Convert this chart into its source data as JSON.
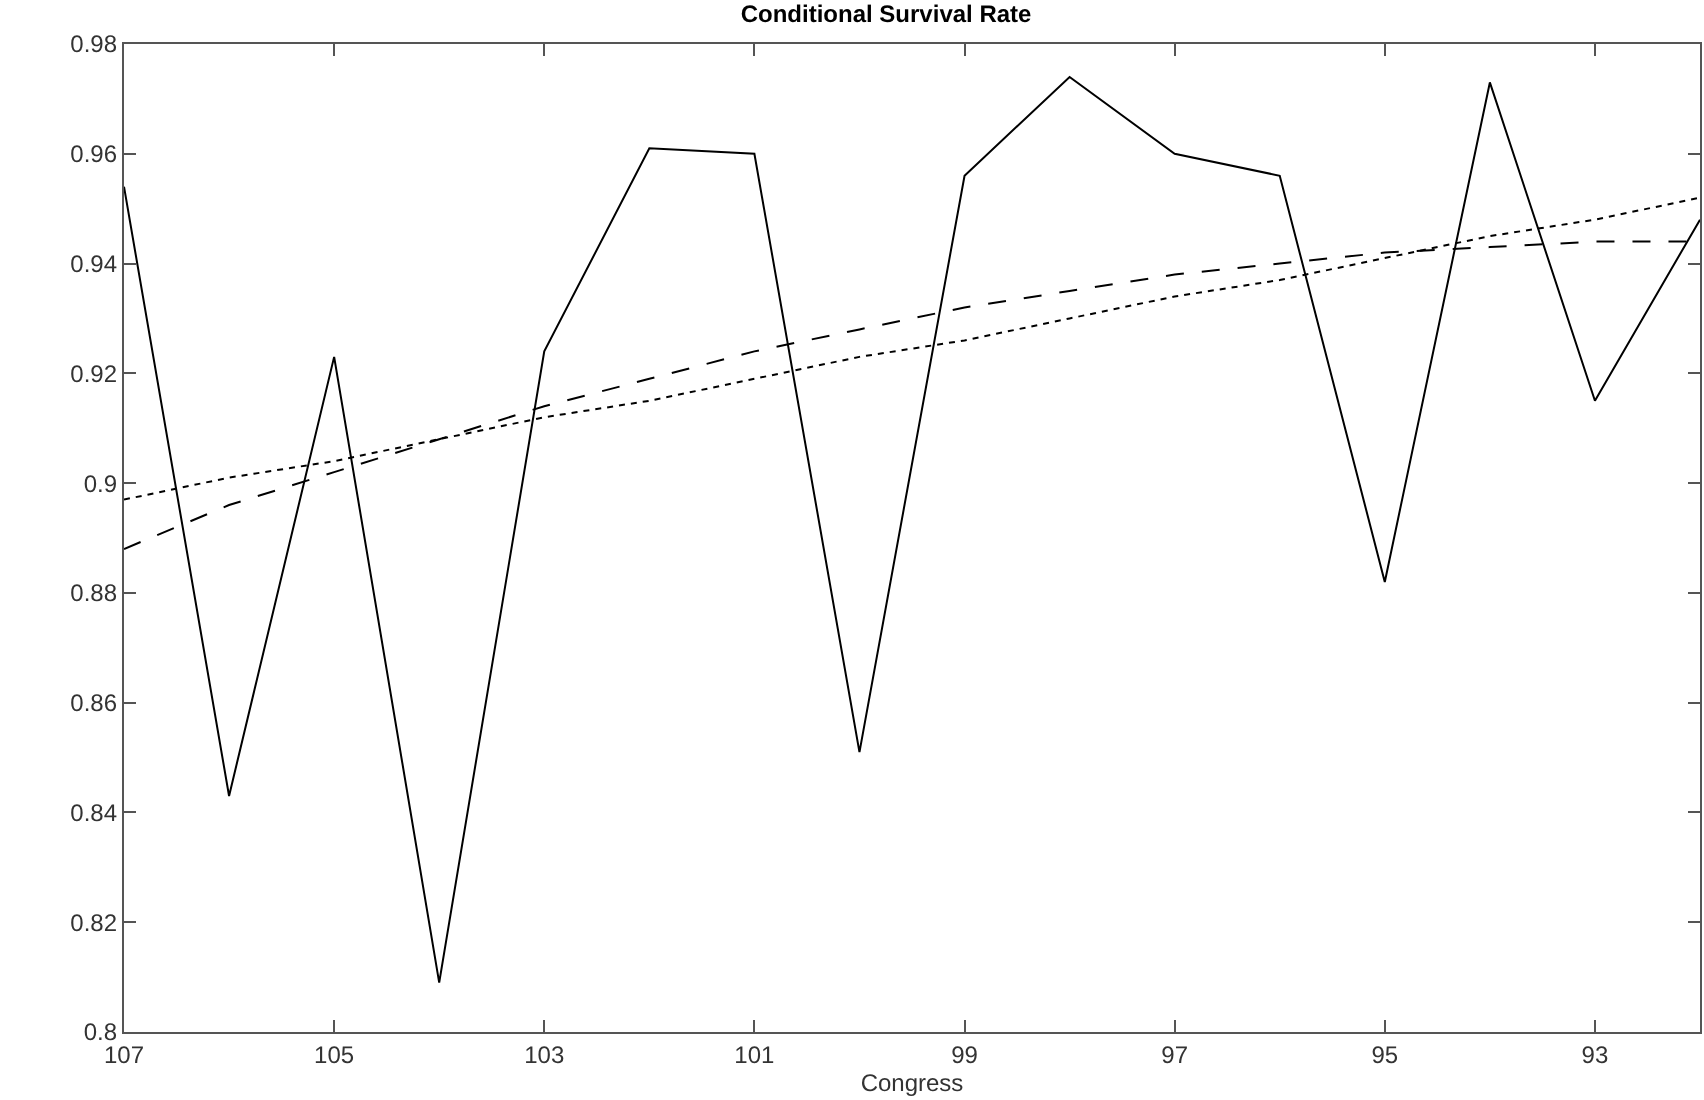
{
  "chart_data": {
    "type": "line",
    "title": "Conditional Survival Rate",
    "xlabel": "Congress",
    "x": [
      107,
      106,
      105,
      104,
      103,
      102,
      101,
      100,
      99,
      98,
      97,
      96,
      95,
      94,
      93,
      92
    ],
    "series": [
      {
        "color": "#000000",
        "line_style": "solid",
        "values": [
          0.954,
          0.843,
          0.923,
          0.809,
          0.924,
          0.961,
          0.96,
          0.851,
          0.956,
          0.974,
          0.96,
          0.956,
          0.882,
          0.973,
          0.915,
          0.948
        ]
      },
      {
        "color": "#000000",
        "line_style": "dashed",
        "values": [
          0.888,
          0.896,
          0.902,
          0.908,
          0.914,
          0.919,
          0.924,
          0.928,
          0.932,
          0.935,
          0.938,
          0.94,
          0.942,
          0.943,
          0.944,
          0.944
        ]
      },
      {
        "color": "#000000",
        "line_style": "dotted",
        "values": [
          0.897,
          0.901,
          0.904,
          0.908,
          0.912,
          0.915,
          0.919,
          0.923,
          0.926,
          0.93,
          0.934,
          0.937,
          0.941,
          0.945,
          0.948,
          0.952
        ]
      }
    ],
    "xlim": [
      107,
      92
    ],
    "xticks": [
      107,
      105,
      103,
      101,
      99,
      97,
      95,
      93
    ],
    "ylim": [
      0.8,
      0.98
    ],
    "yticks": [
      0.8,
      0.82,
      0.84,
      0.86,
      0.88,
      0.9,
      0.92,
      0.94,
      0.96,
      0.98
    ],
    "grid": false
  }
}
